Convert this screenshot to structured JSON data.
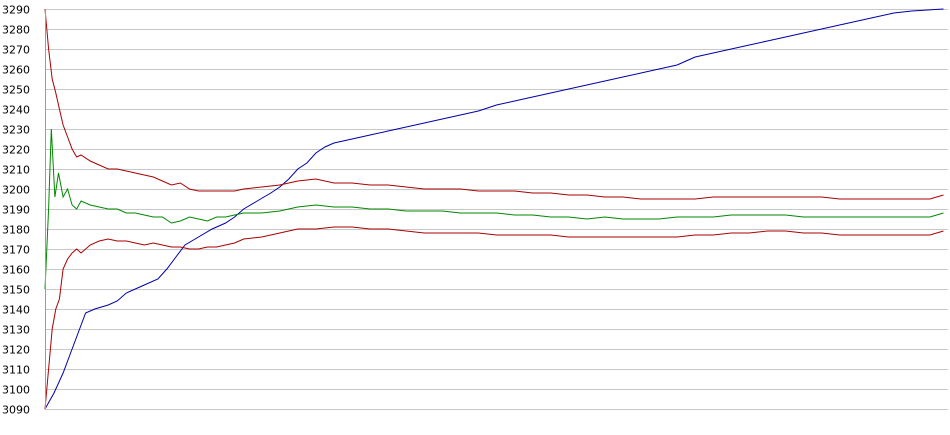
{
  "chart_data": {
    "type": "line",
    "title": "",
    "xlabel": "",
    "ylabel": "",
    "ylim": [
      3090,
      3290
    ],
    "xlim": [
      0,
      100
    ],
    "grid": true,
    "legend": "none",
    "yticks": [
      "3090",
      "3100",
      "3110",
      "3120",
      "3130",
      "3140",
      "3150",
      "3160",
      "3170",
      "3180",
      "3190",
      "3200",
      "3210",
      "3220",
      "3230",
      "3240",
      "3250",
      "3260",
      "3270",
      "3280",
      "3290"
    ],
    "series": [
      {
        "color": "#0000aa",
        "points": [
          [
            0,
            3090
          ],
          [
            1,
            3098
          ],
          [
            2,
            3108
          ],
          [
            3,
            3120
          ],
          [
            4,
            3132
          ],
          [
            4.5,
            3138
          ],
          [
            5.5,
            3140
          ],
          [
            7,
            3142
          ],
          [
            8,
            3144
          ],
          [
            9,
            3148
          ],
          [
            11,
            3152
          ],
          [
            12.5,
            3155
          ],
          [
            13.5,
            3160
          ],
          [
            14.5,
            3166
          ],
          [
            15.5,
            3172
          ],
          [
            17,
            3176
          ],
          [
            18.5,
            3180
          ],
          [
            20,
            3183
          ],
          [
            21,
            3186
          ],
          [
            22,
            3190
          ],
          [
            23.5,
            3194
          ],
          [
            25,
            3198
          ],
          [
            26,
            3201
          ],
          [
            27,
            3205
          ],
          [
            28,
            3210
          ],
          [
            29,
            3213
          ],
          [
            30,
            3218
          ],
          [
            31,
            3221
          ],
          [
            32,
            3223
          ],
          [
            34,
            3225
          ],
          [
            36,
            3227
          ],
          [
            38,
            3229
          ],
          [
            40,
            3231
          ],
          [
            42,
            3233
          ],
          [
            44,
            3235
          ],
          [
            46,
            3237
          ],
          [
            48,
            3239
          ],
          [
            50,
            3242
          ],
          [
            52,
            3244
          ],
          [
            54,
            3246
          ],
          [
            56,
            3248
          ],
          [
            58,
            3250
          ],
          [
            60,
            3252
          ],
          [
            62,
            3254
          ],
          [
            64,
            3256
          ],
          [
            66,
            3258
          ],
          [
            68,
            3260
          ],
          [
            70,
            3262
          ],
          [
            71,
            3264
          ],
          [
            72,
            3266
          ],
          [
            74,
            3268
          ],
          [
            76,
            3270
          ],
          [
            78,
            3272
          ],
          [
            80,
            3274
          ],
          [
            82,
            3276
          ],
          [
            84,
            3278
          ],
          [
            86,
            3280
          ],
          [
            88,
            3282
          ],
          [
            90,
            3284
          ],
          [
            92,
            3286
          ],
          [
            94,
            3288
          ],
          [
            96,
            3289
          ],
          [
            99.5,
            3290
          ]
        ]
      },
      {
        "color": "#008800",
        "points": [
          [
            0,
            3150
          ],
          [
            0.4,
            3190
          ],
          [
            0.7,
            3230
          ],
          [
            1.1,
            3196
          ],
          [
            1.5,
            3208
          ],
          [
            2,
            3196
          ],
          [
            2.5,
            3200
          ],
          [
            3,
            3192
          ],
          [
            3.5,
            3190
          ],
          [
            4,
            3194
          ],
          [
            5,
            3192
          ],
          [
            6,
            3191
          ],
          [
            7,
            3190
          ],
          [
            8,
            3190
          ],
          [
            9,
            3188
          ],
          [
            10,
            3188
          ],
          [
            11,
            3187
          ],
          [
            12,
            3186
          ],
          [
            13,
            3186
          ],
          [
            14,
            3183
          ],
          [
            15,
            3184
          ],
          [
            16,
            3186
          ],
          [
            17,
            3185
          ],
          [
            18,
            3184
          ],
          [
            19,
            3186
          ],
          [
            20,
            3186
          ],
          [
            21,
            3187
          ],
          [
            22,
            3188
          ],
          [
            24,
            3188
          ],
          [
            26,
            3189
          ],
          [
            28,
            3191
          ],
          [
            30,
            3192
          ],
          [
            32,
            3191
          ],
          [
            34,
            3191
          ],
          [
            36,
            3190
          ],
          [
            38,
            3190
          ],
          [
            40,
            3189
          ],
          [
            42,
            3189
          ],
          [
            44,
            3189
          ],
          [
            46,
            3188
          ],
          [
            48,
            3188
          ],
          [
            50,
            3188
          ],
          [
            52,
            3187
          ],
          [
            54,
            3187
          ],
          [
            56,
            3186
          ],
          [
            58,
            3186
          ],
          [
            60,
            3185
          ],
          [
            62,
            3186
          ],
          [
            64,
            3185
          ],
          [
            66,
            3185
          ],
          [
            68,
            3185
          ],
          [
            70,
            3186
          ],
          [
            72,
            3186
          ],
          [
            74,
            3186
          ],
          [
            76,
            3187
          ],
          [
            78,
            3187
          ],
          [
            80,
            3187
          ],
          [
            82,
            3187
          ],
          [
            84,
            3186
          ],
          [
            86,
            3186
          ],
          [
            88,
            3186
          ],
          [
            90,
            3186
          ],
          [
            92,
            3186
          ],
          [
            94,
            3186
          ],
          [
            96,
            3186
          ],
          [
            98,
            3186
          ],
          [
            99.5,
            3188
          ]
        ]
      },
      {
        "color": "#aa0000",
        "points": [
          [
            0,
            3290
          ],
          [
            0.4,
            3270
          ],
          [
            0.8,
            3255
          ],
          [
            1.2,
            3248
          ],
          [
            1.6,
            3240
          ],
          [
            2,
            3232
          ],
          [
            2.5,
            3226
          ],
          [
            3,
            3220
          ],
          [
            3.5,
            3216
          ],
          [
            4,
            3217
          ],
          [
            5,
            3214
          ],
          [
            6,
            3212
          ],
          [
            7,
            3210
          ],
          [
            8,
            3210
          ],
          [
            9,
            3209
          ],
          [
            10,
            3208
          ],
          [
            11,
            3207
          ],
          [
            12,
            3206
          ],
          [
            13,
            3204
          ],
          [
            14,
            3202
          ],
          [
            15,
            3203
          ],
          [
            16,
            3200
          ],
          [
            17,
            3199
          ],
          [
            18,
            3199
          ],
          [
            19,
            3199
          ],
          [
            20,
            3199
          ],
          [
            21,
            3199
          ],
          [
            22,
            3200
          ],
          [
            24,
            3201
          ],
          [
            26,
            3202
          ],
          [
            28,
            3204
          ],
          [
            30,
            3205
          ],
          [
            32,
            3203
          ],
          [
            34,
            3203
          ],
          [
            36,
            3202
          ],
          [
            38,
            3202
          ],
          [
            40,
            3201
          ],
          [
            42,
            3200
          ],
          [
            44,
            3200
          ],
          [
            46,
            3200
          ],
          [
            48,
            3199
          ],
          [
            50,
            3199
          ],
          [
            52,
            3199
          ],
          [
            54,
            3198
          ],
          [
            56,
            3198
          ],
          [
            58,
            3197
          ],
          [
            60,
            3197
          ],
          [
            62,
            3196
          ],
          [
            64,
            3196
          ],
          [
            66,
            3195
          ],
          [
            68,
            3195
          ],
          [
            70,
            3195
          ],
          [
            72,
            3195
          ],
          [
            74,
            3196
          ],
          [
            76,
            3196
          ],
          [
            78,
            3196
          ],
          [
            80,
            3196
          ],
          [
            82,
            3196
          ],
          [
            84,
            3196
          ],
          [
            86,
            3196
          ],
          [
            88,
            3195
          ],
          [
            90,
            3195
          ],
          [
            92,
            3195
          ],
          [
            94,
            3195
          ],
          [
            96,
            3195
          ],
          [
            98,
            3195
          ],
          [
            99.5,
            3197
          ]
        ]
      },
      {
        "color": "#aa0000",
        "points": [
          [
            0,
            3090
          ],
          [
            0.4,
            3110
          ],
          [
            0.8,
            3130
          ],
          [
            1.2,
            3140
          ],
          [
            1.6,
            3145
          ],
          [
            2,
            3160
          ],
          [
            2.5,
            3165
          ],
          [
            3,
            3168
          ],
          [
            3.5,
            3170
          ],
          [
            4,
            3168
          ],
          [
            5,
            3172
          ],
          [
            6,
            3174
          ],
          [
            7,
            3175
          ],
          [
            8,
            3174
          ],
          [
            9,
            3174
          ],
          [
            10,
            3173
          ],
          [
            11,
            3172
          ],
          [
            12,
            3173
          ],
          [
            13,
            3172
          ],
          [
            14,
            3171
          ],
          [
            15,
            3171
          ],
          [
            16,
            3170
          ],
          [
            17,
            3170
          ],
          [
            18,
            3171
          ],
          [
            19,
            3171
          ],
          [
            20,
            3172
          ],
          [
            21,
            3173
          ],
          [
            22,
            3175
          ],
          [
            24,
            3176
          ],
          [
            26,
            3178
          ],
          [
            28,
            3180
          ],
          [
            30,
            3180
          ],
          [
            32,
            3181
          ],
          [
            34,
            3181
          ],
          [
            36,
            3180
          ],
          [
            38,
            3180
          ],
          [
            40,
            3179
          ],
          [
            42,
            3178
          ],
          [
            44,
            3178
          ],
          [
            46,
            3178
          ],
          [
            48,
            3178
          ],
          [
            50,
            3177
          ],
          [
            52,
            3177
          ],
          [
            54,
            3177
          ],
          [
            56,
            3177
          ],
          [
            58,
            3176
          ],
          [
            60,
            3176
          ],
          [
            62,
            3176
          ],
          [
            64,
            3176
          ],
          [
            66,
            3176
          ],
          [
            68,
            3176
          ],
          [
            70,
            3176
          ],
          [
            72,
            3177
          ],
          [
            74,
            3177
          ],
          [
            76,
            3178
          ],
          [
            78,
            3178
          ],
          [
            80,
            3179
          ],
          [
            82,
            3179
          ],
          [
            84,
            3178
          ],
          [
            86,
            3178
          ],
          [
            88,
            3177
          ],
          [
            90,
            3177
          ],
          [
            92,
            3177
          ],
          [
            94,
            3177
          ],
          [
            96,
            3177
          ],
          [
            98,
            3177
          ],
          [
            99.5,
            3179
          ]
        ]
      }
    ]
  }
}
